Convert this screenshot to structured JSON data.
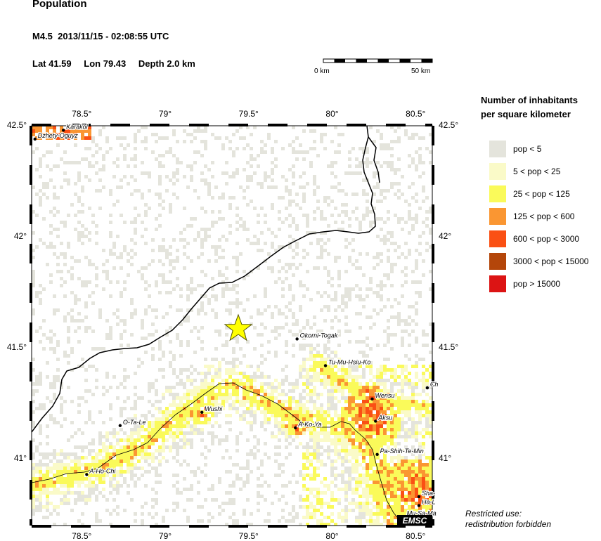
{
  "title": "Population",
  "event": {
    "magnitude": "M4.5",
    "datetime": "2013/11/15 - 02:08:55 UTC",
    "lat_label": "Lat 41.59",
    "lon_label": "Lon 79.43",
    "depth_label": "Depth  2.0 km"
  },
  "scale_bar": {
    "start_label": "0 km",
    "end_label": "50 km"
  },
  "map": {
    "lon_range": [
      78.2,
      80.6
    ],
    "lat_range": [
      40.7,
      42.5
    ],
    "epicenter": {
      "lon": 79.43,
      "lat": 41.59
    },
    "lon_ticks": [
      {
        "value": 78.5,
        "label": "78.5°"
      },
      {
        "value": 79.0,
        "label": "79°"
      },
      {
        "value": 79.5,
        "label": "79.5°"
      },
      {
        "value": 80.0,
        "label": "80°"
      },
      {
        "value": 80.5,
        "label": "80.5°"
      }
    ],
    "lat_ticks": [
      {
        "value": 42.5,
        "label": "42.5°"
      },
      {
        "value": 42.0,
        "label": "42°"
      },
      {
        "value": 41.5,
        "label": "41.5°"
      },
      {
        "value": 41.0,
        "label": "41°"
      }
    ],
    "cities": [
      {
        "name": "Dzhety-Oguyz",
        "lon": 78.22,
        "lat": 42.44
      },
      {
        "name": "Karakol",
        "lon": 78.39,
        "lat": 42.48
      },
      {
        "name": "Okorni-Togak",
        "lon": 79.79,
        "lat": 41.54
      },
      {
        "name": "Tu-Mu-Hsiu-Ko",
        "lon": 79.96,
        "lat": 41.42
      },
      {
        "name": "Ch",
        "lon": 80.57,
        "lat": 41.32
      },
      {
        "name": "Wensu",
        "lon": 80.24,
        "lat": 41.27
      },
      {
        "name": "Aksu",
        "lon": 80.26,
        "lat": 41.17
      },
      {
        "name": "Wushi",
        "lon": 79.22,
        "lat": 41.21
      },
      {
        "name": "A-Ko-Ya",
        "lon": 79.78,
        "lat": 41.14
      },
      {
        "name": "O-Ta-Le",
        "lon": 78.73,
        "lat": 41.15
      },
      {
        "name": "Pa-Shih-Te-Min",
        "lon": 80.27,
        "lat": 41.02
      },
      {
        "name": "A-Ho-Chi",
        "lon": 78.53,
        "lat": 40.93
      },
      {
        "name": "Sha-",
        "lon": 80.52,
        "lat": 40.83
      },
      {
        "name": "Ha-L",
        "lon": 80.52,
        "lat": 40.79
      },
      {
        "name": "Mu-Sa-Ma",
        "lon": 80.43,
        "lat": 40.74
      }
    ],
    "watermark": "EMSC"
  },
  "legend": {
    "title_line1": "Number of inhabitants",
    "title_line2": "per square kilometer",
    "items": [
      {
        "label": "pop < 5",
        "color": "#e4e4dc"
      },
      {
        "label": "5 < pop < 25",
        "color": "#fafac8"
      },
      {
        "label": "25 < pop < 125",
        "color": "#fafa5a"
      },
      {
        "label": "125 < pop < 600",
        "color": "#fa9632"
      },
      {
        "label": "600 < pop < 3000",
        "color": "#fa5014"
      },
      {
        "label": "3000 < pop < 15000",
        "color": "#b4460a"
      },
      {
        "label": "pop > 15000",
        "color": "#dc1414"
      }
    ]
  },
  "restricted_line1": "Restricted use:",
  "restricted_line2": "redistribution forbidden"
}
